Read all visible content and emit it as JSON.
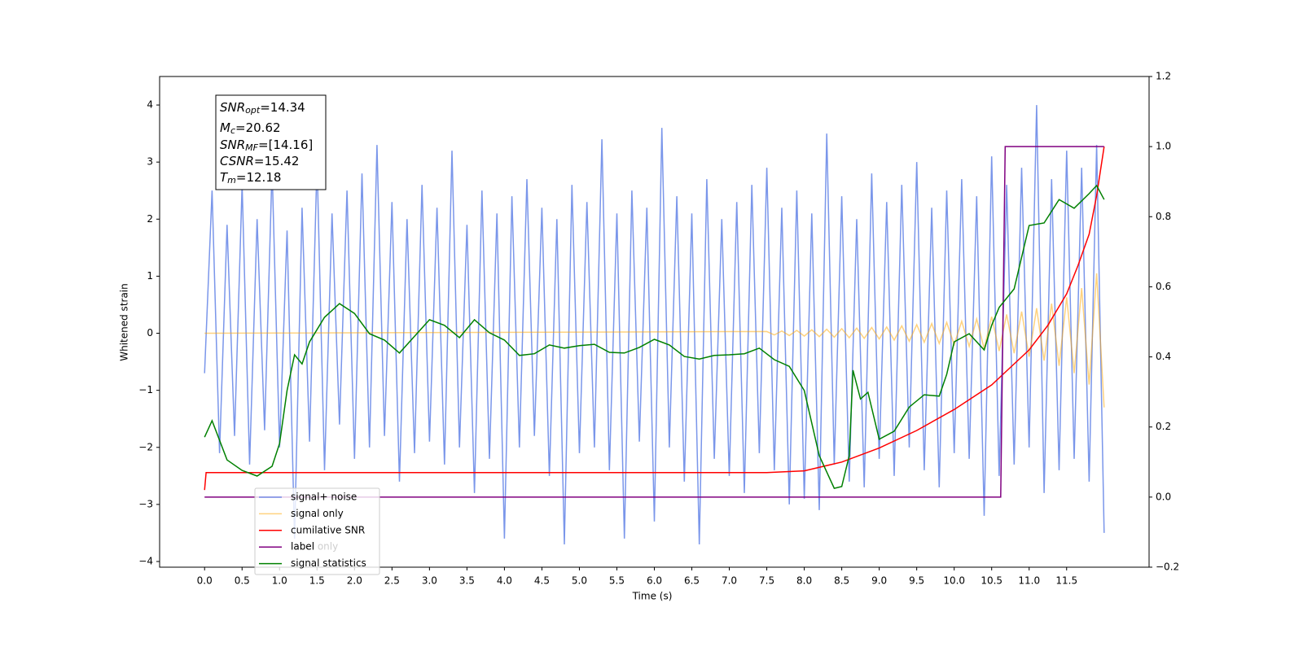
{
  "chart_data": {
    "type": "line",
    "xlabel": "Time (s)",
    "ylabel": "Whitened strain",
    "xlim": [
      -0.6,
      12.6
    ],
    "ylim": [
      -4.1,
      4.5
    ],
    "y2lim": [
      -0.2,
      1.2
    ],
    "xticks": [
      {
        "value": 0,
        "label": "0.0"
      },
      0.5,
      {
        "value": 1,
        "label": "1.0"
      },
      1.5,
      {
        "value": 2,
        "label": "2.0"
      },
      2.5,
      {
        "value": 3,
        "label": "3.0"
      },
      3.5,
      {
        "value": 4,
        "label": "4.0"
      },
      4.5,
      {
        "value": 5,
        "label": "5.0"
      },
      5.5,
      {
        "value": 6,
        "label": "6.0"
      },
      6.5,
      {
        "value": 7,
        "label": "7.0"
      },
      7.5,
      {
        "value": 8,
        "label": "8.0"
      },
      8.5,
      {
        "value": 9,
        "label": "9.0"
      },
      9.5,
      {
        "value": 10,
        "label": "10.0"
      },
      10.5,
      {
        "value": 11,
        "label": "11.0"
      },
      11.5
    ],
    "yticks": [
      {
        "value": -4,
        "label": "−4"
      },
      {
        "value": -3,
        "label": "−3"
      },
      {
        "value": -2,
        "label": "−2"
      },
      {
        "value": -1,
        "label": "−1"
      },
      0,
      1,
      2,
      3,
      4
    ],
    "y2ticks": [
      {
        "value": -0.2,
        "label": "−0.2"
      },
      {
        "value": 0,
        "label": "0.0"
      },
      0.2,
      0.4,
      0.6,
      0.8,
      {
        "value": 1,
        "label": "1.0"
      },
      1.2
    ],
    "grid": false,
    "legend_loc": "lower left",
    "annotation": [
      {
        "main": "SNR",
        "sub": "opt",
        "rest": "=14.34"
      },
      {
        "main": "M",
        "sub": "c",
        "rest": "=20.62"
      },
      {
        "main": "SNR",
        "sub": "MF",
        "rest": "=[14.16]"
      },
      {
        "main": "CSNR",
        "rest": "=15.42"
      },
      {
        "main": "T",
        "sub": "m",
        "rest": "=12.18"
      }
    ],
    "hidden_legend_text": "label only",
    "series": [
      {
        "name": "signal+ noise",
        "color": "#4169e1",
        "alpha": 0.7,
        "axis": "y",
        "x": [
          0,
          0.1,
          0.2,
          0.3,
          0.4,
          0.5,
          0.6,
          0.7,
          0.8,
          0.9,
          1,
          1.1,
          1.2,
          1.3,
          1.4,
          1.5,
          1.6,
          1.7,
          1.8,
          1.9,
          2,
          2.1,
          2.2,
          2.3,
          2.4,
          2.5,
          2.6,
          2.7,
          2.8,
          2.9,
          3,
          3.1,
          3.2,
          3.3,
          3.4,
          3.5,
          3.6,
          3.7,
          3.8,
          3.9,
          4,
          4.1,
          4.2,
          4.3,
          4.4,
          4.5,
          4.6,
          4.7,
          4.8,
          4.9,
          5,
          5.1,
          5.2,
          5.3,
          5.4,
          5.5,
          5.6,
          5.7,
          5.8,
          5.9,
          6,
          6.1,
          6.2,
          6.3,
          6.4,
          6.5,
          6.6,
          6.7,
          6.8,
          6.9,
          7,
          7.1,
          7.2,
          7.3,
          7.4,
          7.5,
          7.6,
          7.7,
          7.8,
          7.9,
          8,
          8.1,
          8.2,
          8.3,
          8.4,
          8.5,
          8.6,
          8.7,
          8.8,
          8.9,
          9,
          9.1,
          9.2,
          9.3,
          9.4,
          9.5,
          9.6,
          9.7,
          9.8,
          9.9,
          10,
          10.1,
          10.2,
          10.3,
          10.4,
          10.5,
          10.6,
          10.7,
          10.8,
          10.9,
          11,
          11.1,
          11.2,
          11.3,
          11.4,
          11.5,
          11.6,
          11.7,
          11.8,
          11.9,
          12
        ],
        "values": [
          -0.7,
          2.5,
          -2.1,
          1.9,
          -1.8,
          2.6,
          -2.3,
          2.0,
          -1.7,
          2.9,
          -2.0,
          1.8,
          -3.6,
          2.2,
          -1.9,
          3.0,
          -2.4,
          2.1,
          -1.6,
          2.5,
          -2.2,
          2.8,
          -2.0,
          3.3,
          -1.8,
          2.3,
          -2.6,
          2.0,
          -2.1,
          2.6,
          -1.9,
          2.2,
          -2.3,
          3.2,
          -2.0,
          1.9,
          -2.8,
          2.5,
          -2.2,
          2.1,
          -3.6,
          2.4,
          -2.0,
          2.7,
          -1.8,
          2.2,
          -2.5,
          2.0,
          -3.7,
          2.6,
          -2.1,
          2.3,
          -2.0,
          3.4,
          -2.4,
          2.1,
          -3.6,
          2.5,
          -1.9,
          2.2,
          -3.3,
          3.6,
          -2.0,
          2.4,
          -2.6,
          2.1,
          -3.7,
          2.7,
          -2.2,
          2.0,
          -2.5,
          2.3,
          -2.8,
          2.6,
          -2.1,
          2.9,
          -2.4,
          2.2,
          -3.0,
          2.5,
          -2.9,
          2.1,
          -3.1,
          3.5,
          -2.3,
          2.4,
          -2.6,
          2.0,
          -2.7,
          2.8,
          -2.2,
          2.3,
          -2.5,
          2.6,
          -2.0,
          3.0,
          -2.4,
          2.2,
          -2.7,
          2.5,
          -2.1,
          2.7,
          -2.2,
          2.4,
          -3.2,
          3.1,
          -2.5,
          2.6,
          -2.3,
          2.9,
          -2.0,
          4.0,
          -2.8,
          2.7,
          -2.4,
          3.2,
          -2.2,
          2.9,
          -2.6,
          3.3,
          -3.5
        ]
      },
      {
        "name": "signal only",
        "color": "#ffa500",
        "alpha": 0.5,
        "axis": "y",
        "x": [
          0,
          7.5,
          7.6,
          7.7,
          7.8,
          7.9,
          8,
          8.1,
          8.2,
          8.3,
          8.4,
          8.5,
          8.6,
          8.7,
          8.8,
          8.9,
          9,
          9.1,
          9.2,
          9.3,
          9.4,
          9.5,
          9.6,
          9.7,
          9.8,
          9.9,
          10,
          10.1,
          10.2,
          10.3,
          10.4,
          10.5,
          10.6,
          10.7,
          10.8,
          10.9,
          11,
          11.1,
          11.2,
          11.3,
          11.4,
          11.5,
          11.6,
          11.7,
          11.8,
          11.9,
          12
        ],
        "values": [
          0,
          0.03,
          -0.03,
          0.04,
          -0.04,
          0.05,
          -0.05,
          0.06,
          -0.06,
          0.07,
          -0.07,
          0.08,
          -0.08,
          0.09,
          -0.09,
          0.1,
          -0.1,
          0.11,
          -0.12,
          0.13,
          -0.14,
          0.15,
          -0.16,
          0.17,
          -0.18,
          0.19,
          -0.2,
          0.21,
          -0.23,
          0.25,
          -0.27,
          0.29,
          -0.31,
          0.33,
          -0.35,
          0.38,
          -0.41,
          0.44,
          -0.48,
          0.52,
          -0.57,
          0.63,
          -0.7,
          0.79,
          -0.9,
          1.05,
          -1.3
        ]
      },
      {
        "name": "cumilative SNR",
        "color": "#ff0000",
        "alpha": 1,
        "axis": "y2",
        "x": [
          0,
          0.02,
          7.5,
          8,
          8.5,
          9,
          9.5,
          10,
          10.5,
          10.75,
          11,
          11.25,
          11.5,
          11.65,
          11.8,
          11.9,
          12
        ],
        "values": [
          0.02,
          0.07,
          0.07,
          0.075,
          0.1,
          0.14,
          0.19,
          0.25,
          0.32,
          0.37,
          0.42,
          0.49,
          0.58,
          0.66,
          0.75,
          0.86,
          1.0
        ]
      },
      {
        "name": "label",
        "color": "#800080",
        "alpha": 1,
        "axis": "y2",
        "x": [
          0,
          10.62,
          10.68,
          12
        ],
        "values": [
          0,
          0,
          1,
          1
        ]
      },
      {
        "name": "signal statistics",
        "color": "#008000",
        "alpha": 1,
        "axis": "y2",
        "x": [
          0,
          0.1,
          0.3,
          0.5,
          0.7,
          0.9,
          1,
          1.1,
          1.2,
          1.3,
          1.4,
          1.6,
          1.8,
          2,
          2.2,
          2.4,
          2.6,
          2.8,
          3,
          3.2,
          3.4,
          3.6,
          3.8,
          4,
          4.2,
          4.4,
          4.6,
          4.8,
          5,
          5.2,
          5.4,
          5.6,
          5.8,
          6,
          6.2,
          6.4,
          6.6,
          6.8,
          7,
          7.2,
          7.4,
          7.6,
          7.8,
          8,
          8.2,
          8.4,
          8.5,
          8.6,
          8.65,
          8.75,
          8.85,
          9,
          9.2,
          9.4,
          9.6,
          9.8,
          9.9,
          10,
          10.2,
          10.4,
          10.5,
          10.6,
          10.8,
          11,
          11.2,
          11.4,
          11.6,
          11.8,
          11.9,
          12
        ],
        "values": [
          0.171,
          0.218,
          0.106,
          0.076,
          0.06,
          0.088,
          0.153,
          0.304,
          0.406,
          0.38,
          0.443,
          0.513,
          0.552,
          0.524,
          0.466,
          0.448,
          0.411,
          0.459,
          0.506,
          0.49,
          0.455,
          0.506,
          0.469,
          0.448,
          0.404,
          0.409,
          0.434,
          0.425,
          0.432,
          0.436,
          0.413,
          0.411,
          0.427,
          0.45,
          0.434,
          0.401,
          0.394,
          0.404,
          0.406,
          0.409,
          0.425,
          0.392,
          0.373,
          0.304,
          0.118,
          0.025,
          0.03,
          0.118,
          0.362,
          0.28,
          0.299,
          0.165,
          0.188,
          0.257,
          0.292,
          0.288,
          0.35,
          0.443,
          0.466,
          0.42,
          0.49,
          0.541,
          0.594,
          0.775,
          0.782,
          0.849,
          0.824,
          0.866,
          0.889,
          0.849
        ]
      }
    ]
  }
}
